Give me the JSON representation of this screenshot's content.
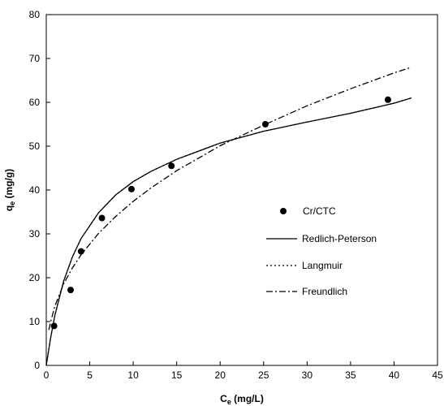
{
  "chart_data": {
    "type": "scatter",
    "xlabel": {
      "main": "C",
      "sub": "e",
      "rest": " (mg/L)"
    },
    "ylabel": {
      "main": "q",
      "sub": "e",
      "rest": " (mg/g)"
    },
    "xlim": [
      0,
      45
    ],
    "ylim": [
      0,
      80
    ],
    "xticks": [
      0,
      5,
      10,
      15,
      20,
      25,
      30,
      35,
      40,
      45
    ],
    "yticks": [
      0,
      10,
      20,
      30,
      40,
      50,
      60,
      70,
      80
    ],
    "grid": false,
    "legend_position": "center-right",
    "points": {
      "name": "Cr/CTC",
      "x": [
        0.9,
        2.8,
        4.0,
        6.4,
        9.8,
        14.4,
        25.2,
        39.3
      ],
      "y": [
        9.0,
        17.2,
        26.0,
        33.6,
        40.2,
        45.5,
        55.0,
        60.6
      ]
    },
    "series": [
      {
        "name": "Redlich-Peterson",
        "style": "solid",
        "x": [
          0,
          0.5,
          1,
          2,
          3,
          4,
          6,
          8,
          10,
          12,
          15,
          20,
          25,
          30,
          35,
          40,
          42
        ],
        "y": [
          0,
          6.3,
          11.5,
          19.2,
          24.7,
          28.9,
          34.8,
          38.9,
          41.9,
          44.2,
          47.0,
          50.7,
          53.4,
          55.5,
          57.5,
          59.8,
          61.0
        ]
      },
      {
        "name": "Langmuir",
        "style": "dotted",
        "x": [
          0,
          0.5,
          1,
          2,
          3,
          4,
          6,
          8,
          10,
          12,
          15,
          20,
          25,
          30,
          35,
          40,
          42
        ],
        "y": [
          0,
          6.3,
          11.5,
          19.2,
          24.7,
          28.9,
          34.8,
          38.9,
          41.9,
          44.2,
          47.0,
          50.7,
          53.4,
          55.5,
          57.5,
          59.8,
          61.0
        ]
      },
      {
        "name": "Freundlich",
        "style": "dashdot",
        "x": [
          0.3,
          0.5,
          1,
          2,
          3,
          4,
          6,
          8,
          10,
          12,
          15,
          20,
          25,
          30,
          35,
          40,
          42
        ],
        "y": [
          8.1,
          9.9,
          13.6,
          18.6,
          22.2,
          25.2,
          30.1,
          34.0,
          37.4,
          40.4,
          44.4,
          50.1,
          54.8,
          59.2,
          63.1,
          66.7,
          68.0
        ]
      }
    ],
    "legend": [
      "Cr/CTC",
      "Redlich-Peterson",
      "Langmuir",
      "Freundlich"
    ]
  }
}
